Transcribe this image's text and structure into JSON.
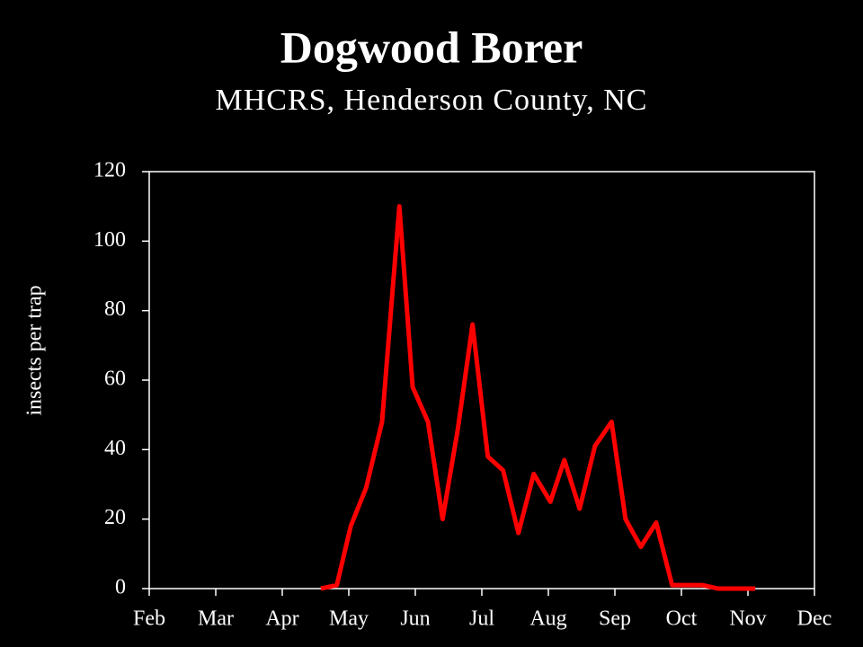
{
  "chart_data": {
    "type": "line",
    "title": "Dogwood Borer",
    "subtitle": "MHCRS, Henderson County, NC",
    "y_label": "insects per trap",
    "x": [
      2.58,
      2.82,
      3.03,
      3.26,
      3.5,
      3.76,
      3.96,
      4.19,
      4.41,
      4.64,
      4.86,
      5.09,
      5.32,
      5.55,
      5.78,
      6.03,
      6.24,
      6.47,
      6.7,
      6.95,
      7.16,
      7.39,
      7.62,
      7.86,
      8.09,
      8.32,
      8.55,
      8.78,
      9.11
    ],
    "series": [
      {
        "name": "Dogwood Borer",
        "color": "#ff0000",
        "values": [
          0,
          1,
          18,
          29,
          48,
          110,
          58,
          48,
          20,
          46,
          76,
          38,
          34,
          16,
          33,
          25,
          37,
          23,
          41,
          48,
          20,
          12,
          19,
          1,
          1,
          1,
          0,
          0,
          0
        ]
      }
    ],
    "xlim": [
      0,
      10
    ],
    "xticks": [
      {
        "value": 0,
        "label": "Feb"
      },
      {
        "value": 1,
        "label": "Mar"
      },
      {
        "value": 2,
        "label": "Apr"
      },
      {
        "value": 3,
        "label": "May"
      },
      {
        "value": 4,
        "label": "Jun"
      },
      {
        "value": 5,
        "label": "Jul"
      },
      {
        "value": 6,
        "label": "Aug"
      },
      {
        "value": 7,
        "label": "Sep"
      },
      {
        "value": 8,
        "label": "Oct"
      },
      {
        "value": 9,
        "label": "Nov"
      },
      {
        "value": 10,
        "label": "Dec"
      }
    ],
    "ylim": [
      0,
      120
    ],
    "yticks": [
      0,
      20,
      40,
      60,
      80,
      100,
      120
    ],
    "grid": false
  }
}
